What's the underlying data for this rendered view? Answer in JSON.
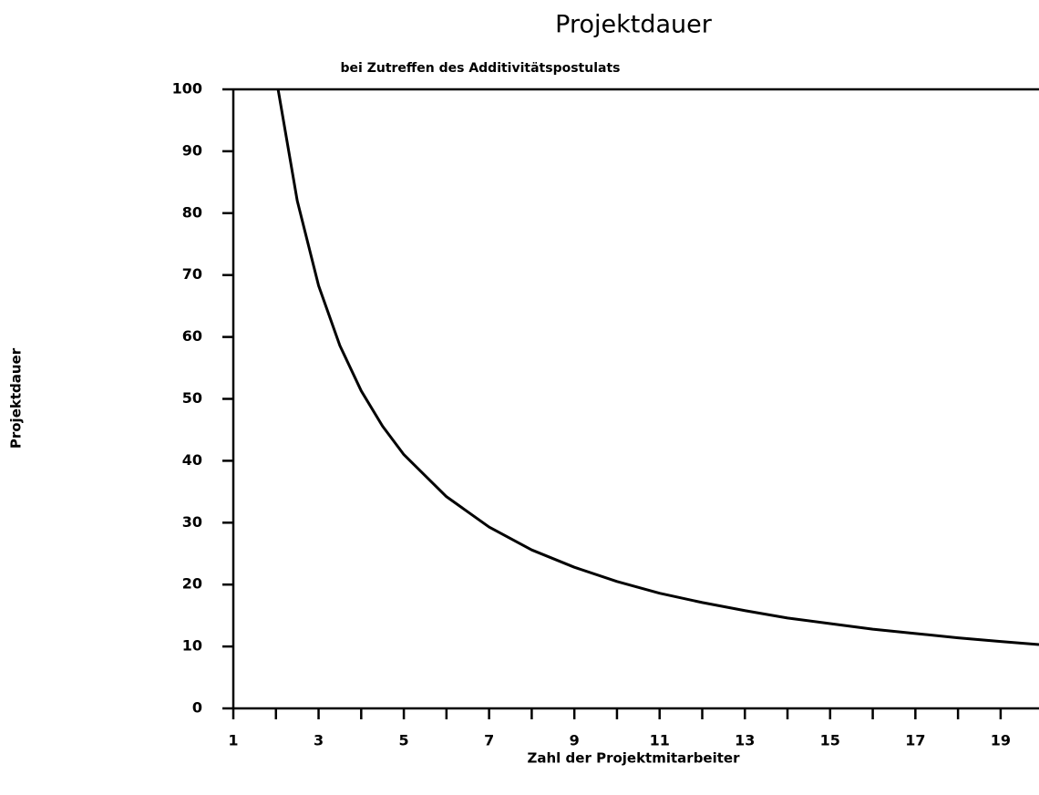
{
  "chart_data": {
    "type": "line",
    "title": "Projektdauer",
    "subtitle": "bei Zutreffen des Additivitätspostulats",
    "x_label": "Zahl der Projektmitarbeiter",
    "y_label": "Projektdauer",
    "x": [
      2.05,
      2.5,
      3,
      3.5,
      4,
      4.5,
      5,
      6,
      7,
      8,
      9,
      10,
      11,
      12,
      13,
      14,
      15,
      16,
      17,
      18,
      19,
      19.9
    ],
    "series": [
      {
        "color": "#000000",
        "values": [
          100,
          82,
          68.3,
          58.6,
          51.3,
          45.6,
          41,
          34.2,
          29.3,
          25.6,
          22.8,
          20.5,
          18.6,
          17.1,
          15.8,
          14.6,
          13.7,
          12.8,
          12.1,
          11.4,
          10.8,
          10.3
        ]
      }
    ],
    "xlim": [
      1,
      19.9
    ],
    "ylim": [
      0,
      100
    ],
    "xticks": [
      1,
      3,
      5,
      7,
      9,
      11,
      13,
      15,
      17,
      19
    ],
    "xminor_ticks": [
      2,
      4,
      6,
      8,
      10,
      12,
      14,
      16,
      18
    ],
    "yticks": [
      0,
      10,
      20,
      30,
      40,
      50,
      60,
      70,
      80,
      90,
      100
    ],
    "grid": false
  }
}
